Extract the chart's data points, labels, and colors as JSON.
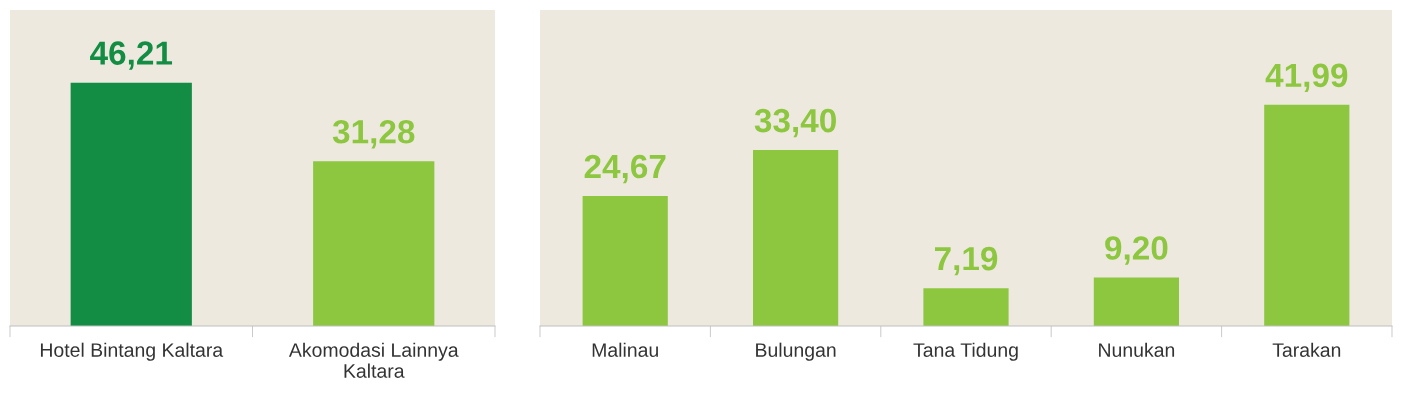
{
  "chart_data": [
    {
      "type": "bar",
      "categories": [
        "Hotel Bintang Kaltara",
        "Akomodasi Lainnya\nKaltara"
      ],
      "values": [
        46.21,
        31.28
      ],
      "colors": [
        "#138d44",
        "#8dc63f"
      ],
      "value_labels": [
        "46,21",
        "31,28"
      ],
      "ylim": [
        0,
        60
      ],
      "tick_labels": "x"
    },
    {
      "type": "bar",
      "categories": [
        "Malinau",
        "Bulungan",
        "Tana Tidung",
        "Nunukan",
        "Tarakan"
      ],
      "values": [
        24.67,
        33.4,
        7.19,
        9.2,
        41.99
      ],
      "colors": [
        "#8dc63f",
        "#8dc63f",
        "#8dc63f",
        "#8dc63f",
        "#8dc63f"
      ],
      "value_labels": [
        "24,67",
        "33,40",
        "7,19",
        "9,20",
        "41,99"
      ],
      "ylim": [
        0,
        60
      ],
      "tick_labels": "x"
    }
  ]
}
